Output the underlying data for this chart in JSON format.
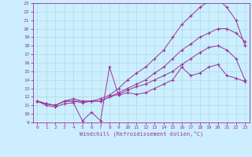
{
  "xlabel": "Windchill (Refroidissement éolien,°C)",
  "xlim": [
    -0.5,
    23.5
  ],
  "ylim": [
    9,
    23
  ],
  "xticks": [
    0,
    1,
    2,
    3,
    4,
    5,
    6,
    7,
    8,
    9,
    10,
    11,
    12,
    13,
    14,
    15,
    16,
    17,
    18,
    19,
    20,
    21,
    22,
    23
  ],
  "yticks": [
    9,
    10,
    11,
    12,
    13,
    14,
    15,
    16,
    17,
    18,
    19,
    20,
    21,
    22,
    23
  ],
  "bg_color": "#cceeff",
  "line_color": "#993399",
  "grid_color": "#aadddd",
  "lines": [
    [
      11.5,
      11.0,
      10.8,
      11.2,
      11.3,
      9.2,
      10.2,
      9.2,
      15.5,
      12.2,
      12.5,
      12.3,
      12.5,
      13.0,
      13.5,
      14.0,
      15.5,
      14.5,
      14.8,
      15.5,
      15.8,
      14.5,
      14.2,
      13.8
    ],
    [
      11.5,
      11.2,
      11.0,
      11.5,
      11.8,
      11.5,
      11.5,
      11.5,
      12.0,
      12.3,
      12.8,
      13.2,
      13.5,
      14.0,
      14.5,
      15.0,
      15.8,
      16.5,
      17.2,
      17.8,
      18.0,
      17.5,
      16.5,
      14.0
    ],
    [
      11.5,
      11.2,
      11.0,
      11.5,
      11.5,
      11.5,
      11.5,
      11.8,
      12.2,
      13.0,
      14.0,
      14.8,
      15.5,
      16.5,
      17.5,
      19.0,
      20.5,
      21.5,
      22.5,
      23.2,
      23.5,
      22.5,
      21.0,
      18.0
    ],
    [
      11.5,
      11.2,
      11.0,
      11.5,
      11.5,
      11.3,
      11.5,
      11.5,
      12.0,
      12.5,
      13.0,
      13.5,
      14.0,
      14.8,
      15.5,
      16.5,
      17.5,
      18.2,
      19.0,
      19.5,
      20.0,
      20.0,
      19.5,
      18.5
    ]
  ]
}
